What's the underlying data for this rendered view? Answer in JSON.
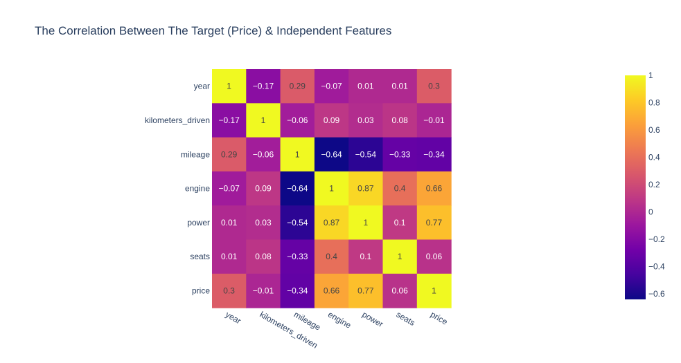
{
  "chart_data": {
    "type": "heatmap",
    "title": "The Correlation Between The Target (Price) & Independent Features",
    "x_labels": [
      "year",
      "kilometers_driven",
      "mileage",
      "engine",
      "power",
      "seats",
      "price"
    ],
    "y_labels": [
      "year",
      "kilometers_driven",
      "mileage",
      "engine",
      "power",
      "seats",
      "price"
    ],
    "values": [
      [
        1,
        -0.17,
        0.29,
        -0.07,
        0.01,
        0.01,
        0.3
      ],
      [
        -0.17,
        1,
        -0.06,
        0.09,
        0.03,
        0.08,
        -0.01
      ],
      [
        0.29,
        -0.06,
        1,
        -0.64,
        -0.54,
        -0.33,
        -0.34
      ],
      [
        -0.07,
        0.09,
        -0.64,
        1,
        0.87,
        0.4,
        0.66
      ],
      [
        0.01,
        0.03,
        -0.54,
        0.87,
        1,
        0.1,
        0.77
      ],
      [
        0.01,
        0.08,
        -0.33,
        0.4,
        0.1,
        1,
        0.06
      ],
      [
        0.3,
        -0.01,
        -0.34,
        0.66,
        0.77,
        0.06,
        1
      ]
    ],
    "zmin": -0.64,
    "zmax": 1,
    "colorscale": "plasma",
    "colorbar_ticks": [
      1,
      0.8,
      0.6,
      0.4,
      0.2,
      0,
      -0.2,
      -0.4,
      -0.6
    ],
    "colorbar_tick_labels": [
      "1",
      "0.8",
      "0.6",
      "0.4",
      "0.2",
      "0",
      "−0.2",
      "−0.4",
      "−0.6"
    ],
    "legend_placement": "right",
    "grid": false
  }
}
